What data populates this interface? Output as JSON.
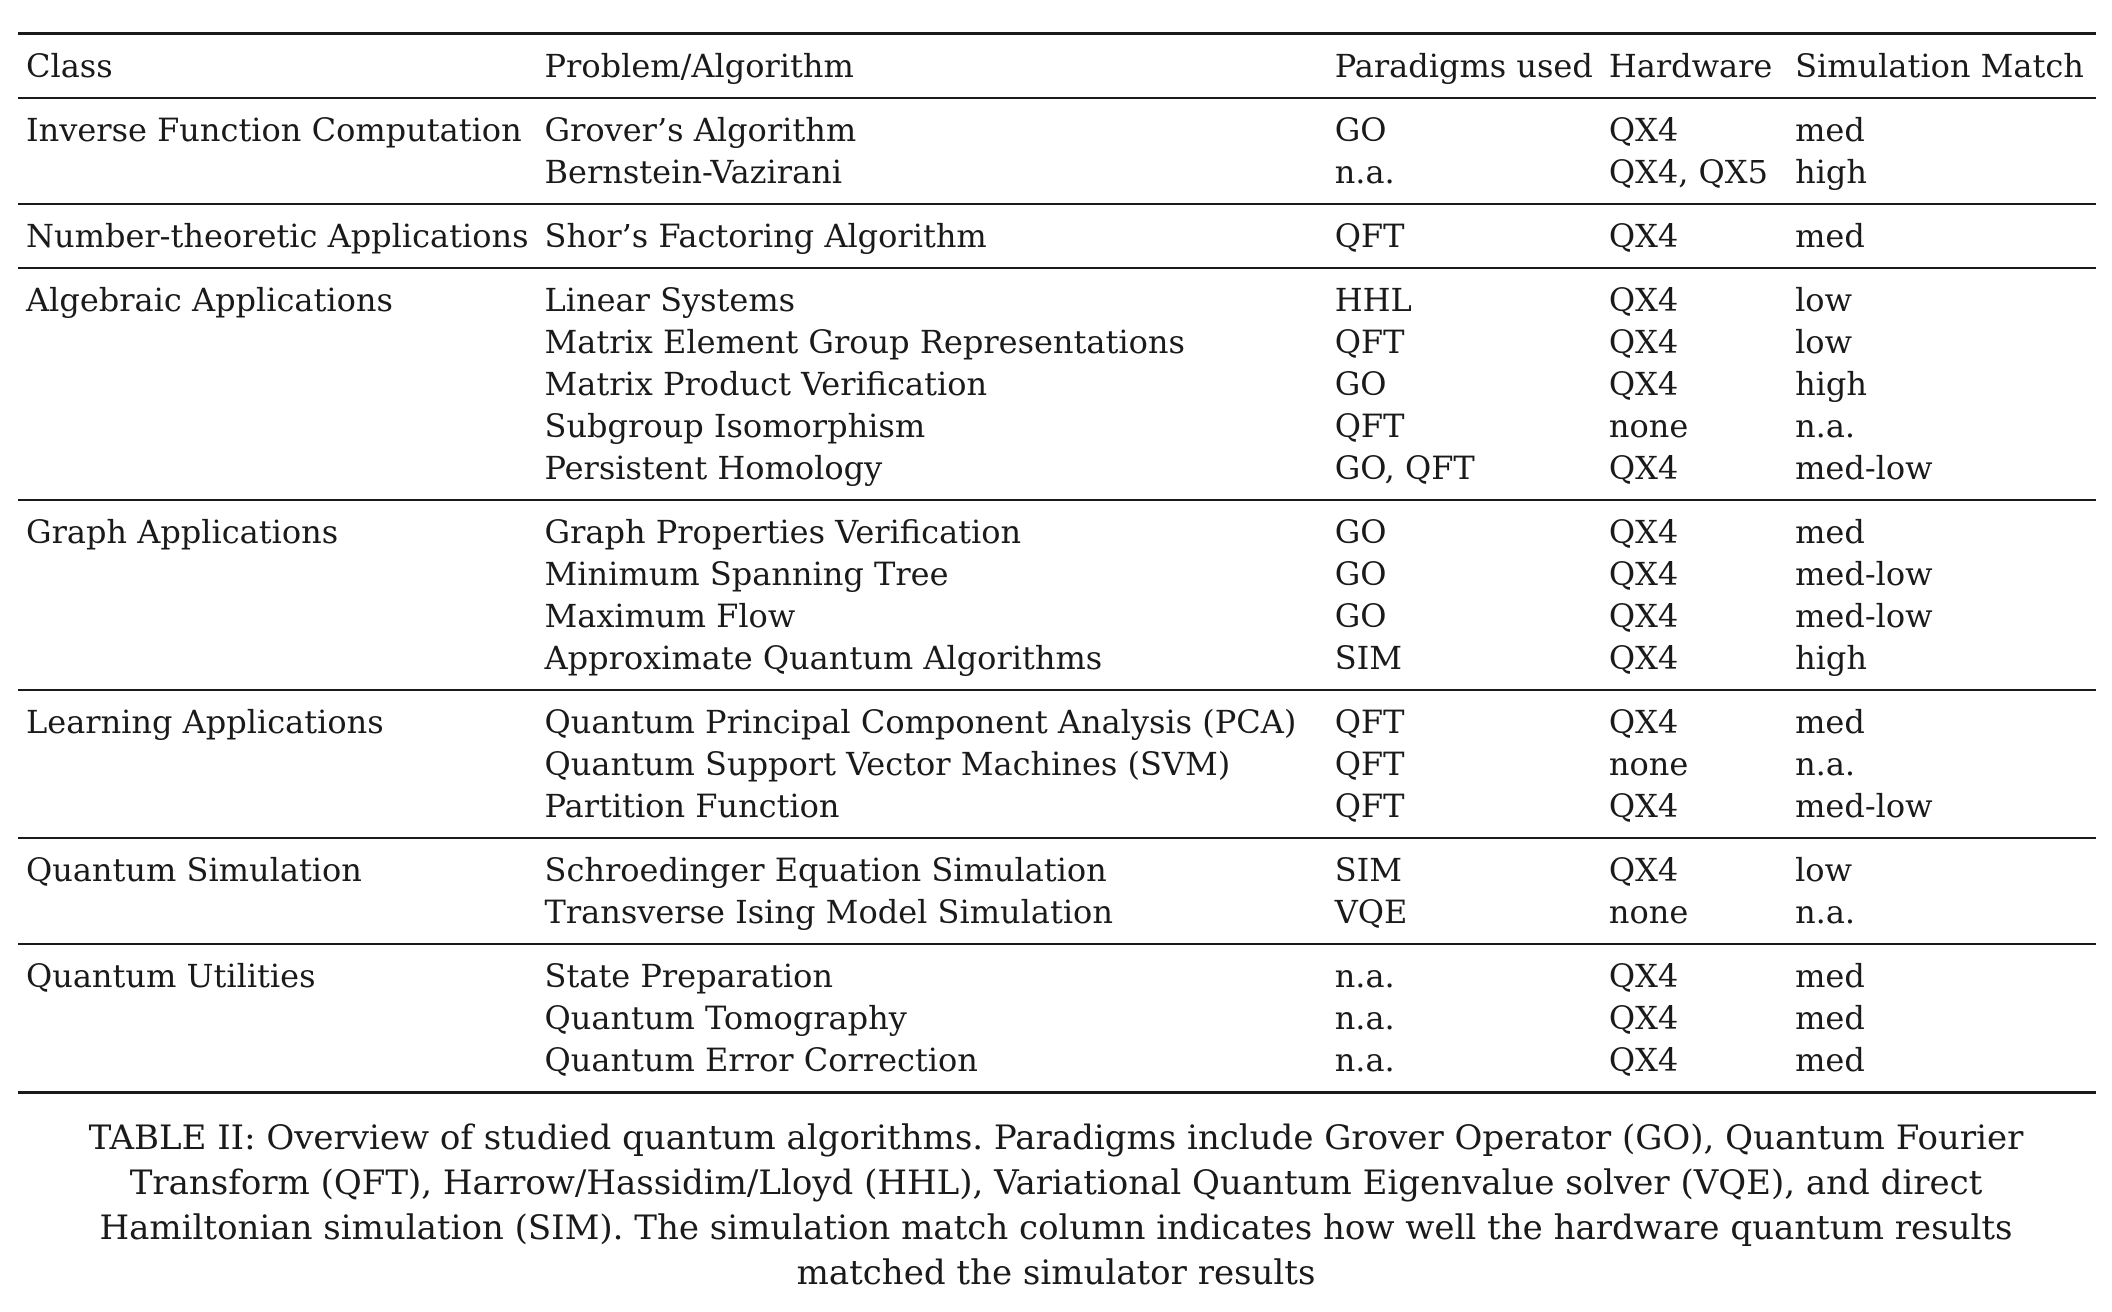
{
  "table": {
    "headers": [
      "Class",
      "Problem/Algorithm",
      "Paradigms used",
      "Hardware",
      "Simulation Match"
    ],
    "groups": [
      {
        "class": "Inverse Function Computation",
        "rows": [
          {
            "problem": "Grover’s Algorithm",
            "paradigm": "GO",
            "hardware": "QX4",
            "match": "med"
          },
          {
            "problem": "Bernstein-Vazirani",
            "paradigm": "n.a.",
            "hardware": "QX4, QX5",
            "match": "high"
          }
        ]
      },
      {
        "class": "Number-theoretic Applications",
        "rows": [
          {
            "problem": "Shor’s Factoring Algorithm",
            "paradigm": "QFT",
            "hardware": "QX4",
            "match": "med"
          }
        ]
      },
      {
        "class": "Algebraic Applications",
        "rows": [
          {
            "problem": "Linear Systems",
            "paradigm": "HHL",
            "hardware": "QX4",
            "match": "low"
          },
          {
            "problem": "Matrix Element Group Representations",
            "paradigm": "QFT",
            "hardware": "QX4",
            "match": "low"
          },
          {
            "problem": "Matrix Product Verification",
            "paradigm": "GO",
            "hardware": "QX4",
            "match": "high"
          },
          {
            "problem": "Subgroup Isomorphism",
            "paradigm": "QFT",
            "hardware": "none",
            "match": "n.a."
          },
          {
            "problem": "Persistent Homology",
            "paradigm": "GO, QFT",
            "hardware": "QX4",
            "match": "med-low"
          }
        ]
      },
      {
        "class": "Graph Applications",
        "rows": [
          {
            "problem": "Graph Properties Verification",
            "paradigm": "GO",
            "hardware": "QX4",
            "match": "med"
          },
          {
            "problem": "Minimum Spanning Tree",
            "paradigm": "GO",
            "hardware": "QX4",
            "match": "med-low"
          },
          {
            "problem": "Maximum Flow",
            "paradigm": "GO",
            "hardware": "QX4",
            "match": "med-low"
          },
          {
            "problem": "Approximate Quantum Algorithms",
            "paradigm": "SIM",
            "hardware": "QX4",
            "match": "high"
          }
        ]
      },
      {
        "class": "Learning Applications",
        "rows": [
          {
            "problem": "Quantum Principal Component Analysis (PCA)",
            "paradigm": "QFT",
            "hardware": "QX4",
            "match": "med"
          },
          {
            "problem": "Quantum Support Vector Machines (SVM)",
            "paradigm": "QFT",
            "hardware": "none",
            "match": "n.a."
          },
          {
            "problem": "Partition Function",
            "paradigm": "QFT",
            "hardware": "QX4",
            "match": "med-low"
          }
        ]
      },
      {
        "class": "Quantum Simulation",
        "rows": [
          {
            "problem": "Schroedinger Equation Simulation",
            "paradigm": "SIM",
            "hardware": "QX4",
            "match": "low"
          },
          {
            "problem": "Transverse Ising Model Simulation",
            "paradigm": "VQE",
            "hardware": "none",
            "match": "n.a."
          }
        ]
      },
      {
        "class": "Quantum Utilities",
        "rows": [
          {
            "problem": "State Preparation",
            "paradigm": "n.a.",
            "hardware": "QX4",
            "match": "med"
          },
          {
            "problem": "Quantum Tomography",
            "paradigm": "n.a.",
            "hardware": "QX4",
            "match": "med"
          },
          {
            "problem": "Quantum Error Correction",
            "paradigm": "n.a.",
            "hardware": "QX4",
            "match": "med"
          }
        ]
      }
    ]
  },
  "caption": "TABLE II: Overview of studied quantum algorithms. Paradigms include Grover Operator (GO), Quantum Fourier Transform (QFT), Harrow/Hassidim/Lloyd (HHL), Variational Quantum Eigenvalue solver (VQE), and direct Hamiltonian simulation (SIM). The simulation match column indicates how well the hardware quantum results matched the simulator results"
}
